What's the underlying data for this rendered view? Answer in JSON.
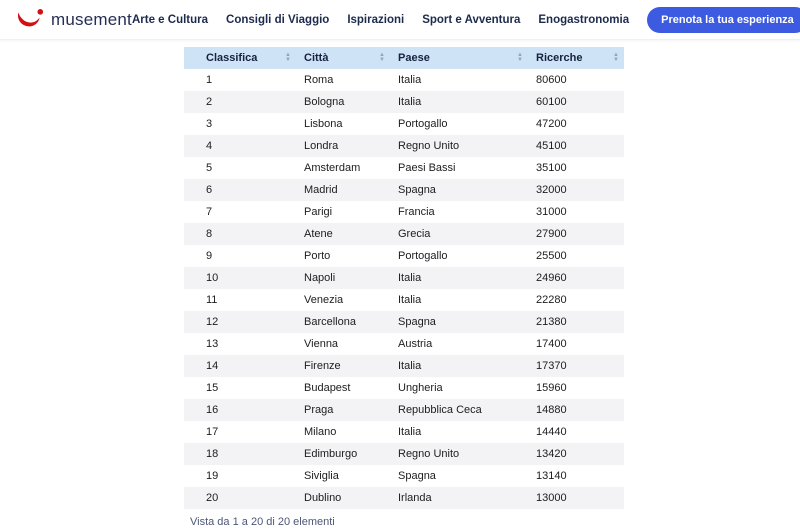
{
  "header": {
    "logo_text": "musement",
    "nav_items": [
      "Arte e Cultura",
      "Consigli di Viaggio",
      "Ispirazioni",
      "Sport e Avventura",
      "Enogastronomia"
    ],
    "cta_label": "Prenota la tua esperienza"
  },
  "table": {
    "columns": [
      "Classifica",
      "Città",
      "Paese",
      "Ricerche"
    ],
    "column_keys": [
      "classifica",
      "citta",
      "paese",
      "ricerche"
    ],
    "rows": [
      [
        1,
        "Roma",
        "Italia",
        80600
      ],
      [
        2,
        "Bologna",
        "Italia",
        60100
      ],
      [
        3,
        "Lisbona",
        "Portogallo",
        47200
      ],
      [
        4,
        "Londra",
        "Regno Unito",
        45100
      ],
      [
        5,
        "Amsterdam",
        "Paesi Bassi",
        35100
      ],
      [
        6,
        "Madrid",
        "Spagna",
        32000
      ],
      [
        7,
        "Parigi",
        "Francia",
        31000
      ],
      [
        8,
        "Atene",
        "Grecia",
        27900
      ],
      [
        9,
        "Porto",
        "Portogallo",
        25500
      ],
      [
        10,
        "Napoli",
        "Italia",
        24960
      ],
      [
        11,
        "Venezia",
        "Italia",
        22280
      ],
      [
        12,
        "Barcellona",
        "Spagna",
        21380
      ],
      [
        13,
        "Vienna",
        "Austria",
        17400
      ],
      [
        14,
        "Firenze",
        "Italia",
        17370
      ],
      [
        15,
        "Budapest",
        "Ungheria",
        15960
      ],
      [
        16,
        "Praga",
        "Repubblica Ceca",
        14880
      ],
      [
        17,
        "Milano",
        "Italia",
        14440
      ],
      [
        18,
        "Edimburgo",
        "Regno Unito",
        13420
      ],
      [
        19,
        "Siviglia",
        "Spagna",
        13140
      ],
      [
        20,
        "Dublino",
        "Irlanda",
        13000
      ]
    ],
    "info": "Vista da 1 a 20 di 20 elementi"
  },
  "colors": {
    "brand_red": "#d40e14",
    "navy_text": "#1c2a4e",
    "cta_blue": "#3d5be0",
    "table_header_bg": "#cfe3f6",
    "row_stripe": "#f3f3f5"
  }
}
